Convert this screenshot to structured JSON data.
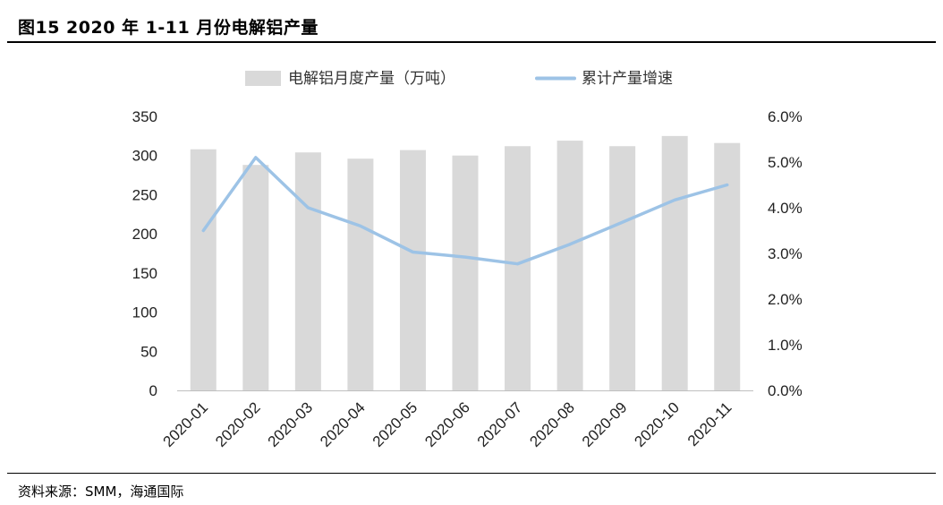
{
  "figure": {
    "title": "图15 2020 年 1-11 月份电解铝产量",
    "source": "资料来源：SMM，海通国际"
  },
  "colors": {
    "bar": "#d9d9d9",
    "line": "#9dc3e6",
    "axis": "#bfbfbf",
    "text": "#222222"
  },
  "chart_data": {
    "type": "bar",
    "categories": [
      "2020-01",
      "2020-02",
      "2020-03",
      "2020-04",
      "2020-05",
      "2020-06",
      "2020-07",
      "2020-08",
      "2020-09",
      "2020-10",
      "2020-11"
    ],
    "series": [
      {
        "name": "电解铝月度产量（万吨）",
        "type": "bar",
        "axis": "left",
        "values": [
          308,
          288,
          304,
          296,
          307,
          300,
          312,
          319,
          312,
          325,
          316
        ]
      },
      {
        "name": "累计产量增速",
        "type": "line",
        "axis": "right",
        "values": [
          3.5,
          5.1,
          4.0,
          3.6,
          3.03,
          2.92,
          2.77,
          3.2,
          3.68,
          4.17,
          4.5
        ]
      }
    ],
    "y_left": {
      "ylim": [
        0,
        350
      ],
      "ticks": [
        "0",
        "50",
        "100",
        "150",
        "200",
        "250",
        "300",
        "350"
      ]
    },
    "y_right": {
      "ylim": [
        0,
        6
      ],
      "ticks": [
        "0.0%",
        "1.0%",
        "2.0%",
        "3.0%",
        "4.0%",
        "5.0%",
        "6.0%"
      ]
    },
    "legend": "top-center",
    "grid": false
  }
}
